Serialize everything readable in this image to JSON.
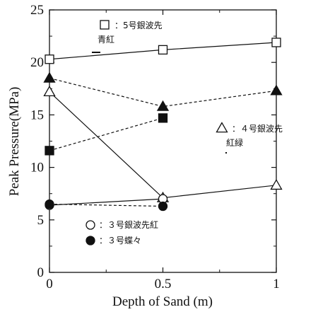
{
  "chart_data": {
    "type": "line",
    "xlabel": "Depth of Sand (m)",
    "ylabel": "Peak Pressure(MPa)",
    "xlim": [
      0,
      1
    ],
    "ylim": [
      0,
      25
    ],
    "x_ticks": [
      "0",
      "0.5",
      "1"
    ],
    "y_ticks": [
      "0",
      "5",
      "10",
      "15",
      "20",
      "25"
    ],
    "grid": false,
    "series": [
      {
        "name": "5号銀波先",
        "marker": "square-open",
        "line": "solid",
        "x": [
          0,
          0.5,
          1
        ],
        "y": [
          20.3,
          21.2,
          21.9
        ]
      },
      {
        "name": "青紅",
        "marker": "square-filled",
        "line": "dashed",
        "x": [
          0,
          0.5
        ],
        "y": [
          11.6,
          14.7
        ]
      },
      {
        "name": "4号銀波先",
        "marker": "triangle-open",
        "line": "solid",
        "x": [
          0,
          0.5,
          1
        ],
        "y": [
          17.2,
          7.1,
          8.3
        ]
      },
      {
        "name": "紅緑",
        "marker": "triangle-filled",
        "line": "dashed",
        "x": [
          0,
          0.5,
          1
        ],
        "y": [
          18.5,
          15.8,
          17.3
        ]
      },
      {
        "name": "3号銀波先紅",
        "marker": "circle-open",
        "line": "solid",
        "x": [
          0,
          0.5
        ],
        "y": [
          6.4,
          7.0
        ]
      },
      {
        "name": "3号蝶々",
        "marker": "circle-filled",
        "line": "dashed",
        "x": [
          0,
          0.5
        ],
        "y": [
          6.5,
          6.3
        ]
      }
    ],
    "legend": [
      {
        "symbol": "□",
        "text": "：5号銀波先"
      },
      {
        "symbol": "",
        "text": "青紅"
      },
      {
        "symbol": "△",
        "text": "：４号銀波先"
      },
      {
        "symbol": "",
        "text": "紅緑"
      },
      {
        "symbol": "○",
        "text": "：３号銀波先紅"
      },
      {
        "symbol": "●",
        "text": "：３号蝶々"
      }
    ]
  }
}
